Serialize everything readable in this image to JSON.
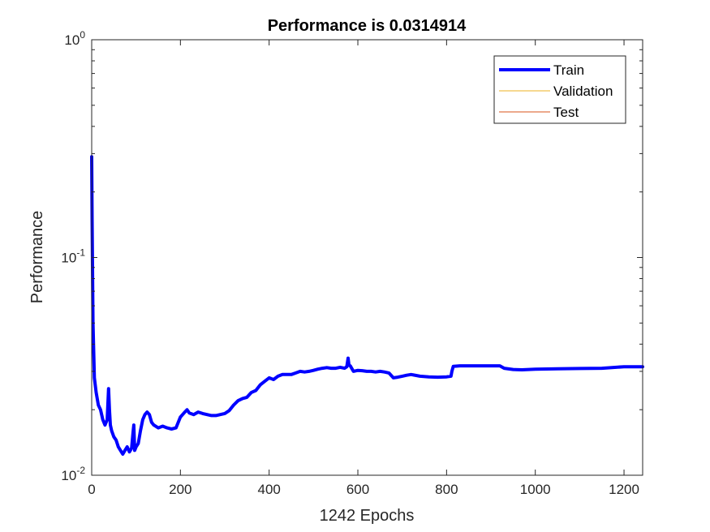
{
  "chart_data": {
    "type": "line",
    "title": "Performance is 0.0314914",
    "xlabel": "1242 Epochs",
    "ylabel": "Performance",
    "xlim": [
      0,
      1242
    ],
    "ylim": [
      0.01,
      1
    ],
    "yscale": "log",
    "grid": false,
    "legend_position": "top-right",
    "x_ticks": [
      0,
      200,
      400,
      600,
      800,
      1000,
      1200
    ],
    "y_ticks": [
      {
        "value": 0.01,
        "base": "10",
        "exp": "-2"
      },
      {
        "value": 0.1,
        "base": "10",
        "exp": "-1"
      },
      {
        "value": 1,
        "base": "10",
        "exp": "0"
      }
    ],
    "series": [
      {
        "name": "Train",
        "color": "#0000ff",
        "x": [
          0,
          1,
          3,
          6,
          10,
          15,
          20,
          25,
          30,
          35,
          38,
          40,
          42,
          45,
          50,
          55,
          60,
          65,
          70,
          75,
          80,
          85,
          90,
          93,
          95,
          97,
          100,
          105,
          110,
          115,
          120,
          125,
          130,
          135,
          140,
          150,
          160,
          170,
          180,
          190,
          200,
          210,
          215,
          220,
          230,
          240,
          250,
          260,
          270,
          280,
          290,
          300,
          310,
          320,
          330,
          340,
          350,
          360,
          370,
          380,
          390,
          400,
          410,
          420,
          430,
          440,
          450,
          460,
          470,
          480,
          490,
          500,
          510,
          520,
          530,
          540,
          550,
          560,
          570,
          575,
          578,
          580,
          583,
          586,
          590,
          600,
          610,
          620,
          630,
          640,
          650,
          660,
          670,
          680,
          690,
          700,
          710,
          720,
          740,
          760,
          780,
          800,
          810,
          812,
          815,
          830,
          860,
          900,
          920,
          930,
          950,
          970,
          1000,
          1050,
          1100,
          1150,
          1200,
          1242
        ],
        "values": [
          0.29,
          0.15,
          0.05,
          0.028,
          0.024,
          0.021,
          0.02,
          0.018,
          0.017,
          0.018,
          0.025,
          0.02,
          0.017,
          0.016,
          0.015,
          0.0145,
          0.0135,
          0.013,
          0.0125,
          0.013,
          0.0135,
          0.0128,
          0.0133,
          0.0155,
          0.017,
          0.013,
          0.0135,
          0.014,
          0.016,
          0.018,
          0.019,
          0.0195,
          0.019,
          0.0175,
          0.017,
          0.0165,
          0.0168,
          0.0165,
          0.0163,
          0.0165,
          0.0185,
          0.0195,
          0.02,
          0.0193,
          0.019,
          0.0195,
          0.0192,
          0.019,
          0.0188,
          0.0188,
          0.019,
          0.0192,
          0.0198,
          0.021,
          0.022,
          0.0225,
          0.0228,
          0.024,
          0.0245,
          0.026,
          0.027,
          0.028,
          0.0275,
          0.0285,
          0.029,
          0.029,
          0.029,
          0.0295,
          0.03,
          0.0298,
          0.03,
          0.0303,
          0.0307,
          0.031,
          0.0312,
          0.031,
          0.031,
          0.0313,
          0.031,
          0.0315,
          0.0345,
          0.032,
          0.0318,
          0.031,
          0.03,
          0.0303,
          0.0302,
          0.03,
          0.03,
          0.0298,
          0.03,
          0.0298,
          0.0295,
          0.028,
          0.0282,
          0.0285,
          0.0288,
          0.029,
          0.0285,
          0.0283,
          0.0282,
          0.0283,
          0.0285,
          0.03,
          0.0316,
          0.0318,
          0.0318,
          0.0318,
          0.0318,
          0.031,
          0.0306,
          0.0305,
          0.0307,
          0.0308,
          0.0309,
          0.031,
          0.0315,
          0.0315
        ]
      },
      {
        "name": "Validation",
        "color": "#edb120",
        "x": [],
        "values": []
      },
      {
        "name": "Test",
        "color": "#d95319",
        "x": [],
        "values": []
      }
    ]
  }
}
